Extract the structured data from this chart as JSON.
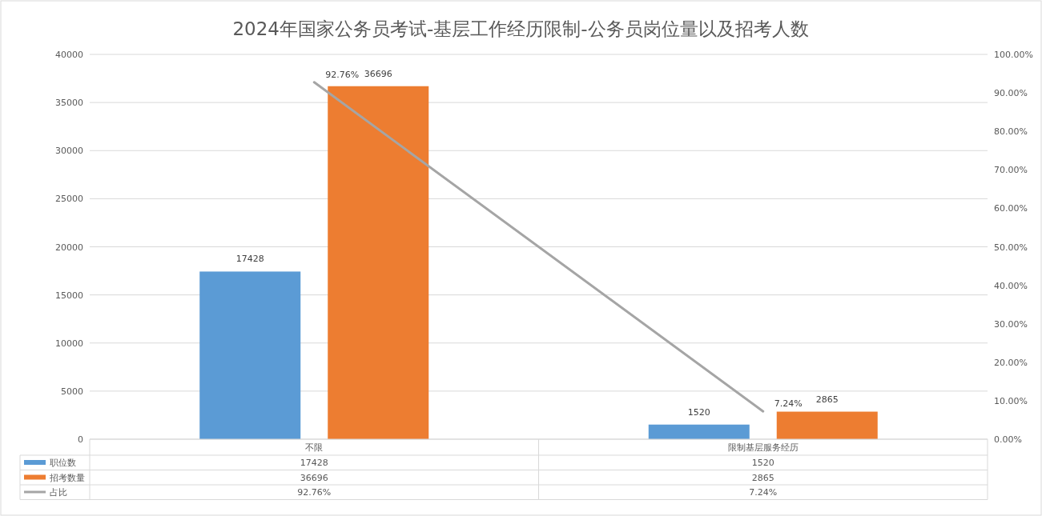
{
  "chart_data": {
    "type": "bar",
    "title": "2024年国家公务员考试-基层工作经历限制-公务员岗位量以及招考人数",
    "categories": [
      "不限",
      "限制基层服务经历"
    ],
    "series": [
      {
        "name": "职位数",
        "color": "#5b9bd5",
        "values": [
          17428,
          1520
        ],
        "value_labels": [
          "17428",
          "1520"
        ]
      },
      {
        "name": "招考数量",
        "color": "#ed7d31",
        "values": [
          36696,
          2865
        ],
        "value_labels": [
          "36696",
          "2865"
        ]
      },
      {
        "name": "占比",
        "type": "line",
        "axis": "y2",
        "color": "#a5a5a5",
        "values": [
          92.76,
          7.24
        ],
        "value_labels": [
          "92.76%",
          "7.24%"
        ]
      }
    ],
    "ylim": [
      0,
      40000
    ],
    "yticks": [
      0,
      5000,
      10000,
      15000,
      20000,
      25000,
      30000,
      35000,
      40000
    ],
    "y2lim": [
      0,
      100
    ],
    "y2ticks": [
      {
        "value": 0,
        "label": "0.00%"
      },
      {
        "value": 10,
        "label": "10.00%"
      },
      {
        "value": 20,
        "label": "20.00%"
      },
      {
        "value": 30,
        "label": "30.00%"
      },
      {
        "value": 40,
        "label": "40.00%"
      },
      {
        "value": 50,
        "label": "50.00%"
      },
      {
        "value": 60,
        "label": "60.00%"
      },
      {
        "value": 70,
        "label": "70.00%"
      },
      {
        "value": 80,
        "label": "80.00%"
      },
      {
        "value": 90,
        "label": "90.00%"
      },
      {
        "value": 100,
        "label": "100.00%"
      }
    ],
    "grid": "y",
    "legend": "bottom left",
    "marker": "none",
    "line_style": "solid"
  }
}
